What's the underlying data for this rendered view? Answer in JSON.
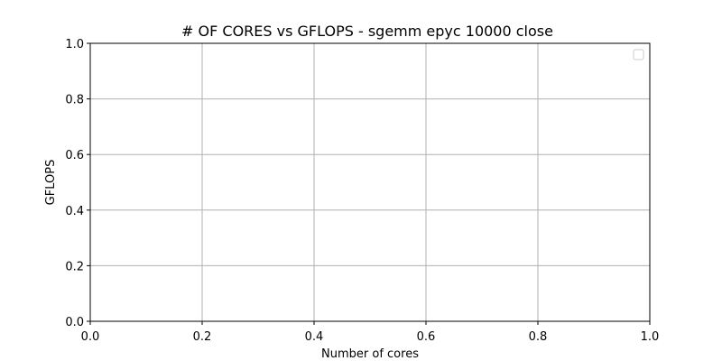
{
  "chart_data": {
    "type": "line",
    "title": "# OF CORES vs GFLOPS - sgemm  epyc 10000 close",
    "xlabel": "Number of cores",
    "ylabel": "GFLOPS",
    "xlim": [
      0.0,
      1.0
    ],
    "ylim": [
      0.0,
      1.0
    ],
    "x_ticks": [
      "0.0",
      "0.2",
      "0.4",
      "0.6",
      "0.8",
      "1.0"
    ],
    "y_ticks": [
      "0.0",
      "0.2",
      "0.4",
      "0.6",
      "0.8",
      "1.0"
    ],
    "grid": true,
    "legend": {
      "placement": "top-right",
      "entries": []
    },
    "series": []
  },
  "colors": {
    "grid": "#b0b0b0",
    "axis": "#000000",
    "background": "#ffffff"
  }
}
